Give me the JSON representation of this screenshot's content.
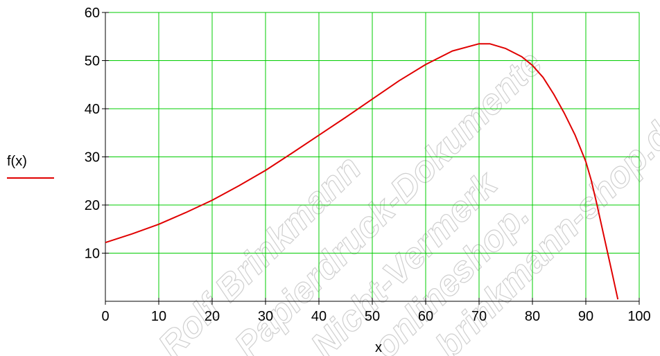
{
  "chart_data": {
    "type": "line",
    "xlabel": "x",
    "ylabel": "f(x)",
    "xlim": [
      0,
      100
    ],
    "ylim": [
      0,
      60
    ],
    "x_ticks": [
      "0",
      "10",
      "20",
      "30",
      "40",
      "50",
      "60",
      "70",
      "80",
      "90",
      "100"
    ],
    "y_ticks": [
      "10",
      "20",
      "30",
      "40",
      "50",
      "60"
    ],
    "grid": true,
    "legend": "left",
    "series": [
      {
        "name": "f(x)",
        "x": [
          0,
          5,
          10,
          15,
          20,
          25,
          30,
          35,
          40,
          45,
          50,
          55,
          60,
          65,
          70,
          72,
          75,
          78,
          80,
          82,
          84,
          86,
          88,
          90,
          91,
          92,
          93,
          94,
          95,
          96
        ],
        "y": [
          12.2,
          14,
          16,
          18.4,
          21,
          24,
          27.2,
          30.8,
          34.5,
          38.2,
          42,
          45.8,
          49.2,
          52,
          53.5,
          53.5,
          52.5,
          50.8,
          49,
          46.5,
          43,
          39,
          34.5,
          29,
          25.2,
          20.5,
          15.5,
          10.5,
          5.5,
          0.4
        ]
      }
    ],
    "watermark_lines": [
      "Rolf Brinkmann",
      "Papierdruck-Dokumente",
      "Nicht-Vermerk",
      "onlineshop.",
      "brinkmann-shop.de"
    ]
  },
  "colors": {
    "grid": "#00cc00",
    "series": "#e00000",
    "axis": "#000000",
    "background": "#ffffff"
  }
}
